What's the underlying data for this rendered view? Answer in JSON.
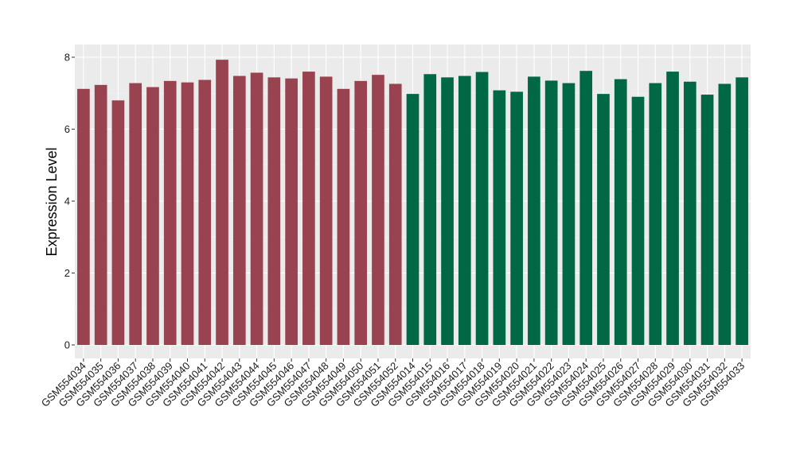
{
  "chart_data": {
    "type": "bar",
    "title": "",
    "xlabel": "",
    "ylabel": "Expression Level",
    "ylim": [
      -0.35,
      8.35
    ],
    "yticks": [
      0,
      2,
      4,
      6,
      8
    ],
    "grid": true,
    "panel_background": "#ebebeb",
    "categories": [
      "GSM554034",
      "GSM554035",
      "GSM554036",
      "GSM554037",
      "GSM554038",
      "GSM554039",
      "GSM554040",
      "GSM554041",
      "GSM554042",
      "GSM554043",
      "GSM554044",
      "GSM554045",
      "GSM554046",
      "GSM554047",
      "GSM554048",
      "GSM554049",
      "GSM554050",
      "GSM554051",
      "GSM554052",
      "GSM554014",
      "GSM554015",
      "GSM554016",
      "GSM554017",
      "GSM554018",
      "GSM554019",
      "GSM554020",
      "GSM554021",
      "GSM554022",
      "GSM554023",
      "GSM554024",
      "GSM554025",
      "GSM554026",
      "GSM554027",
      "GSM554028",
      "GSM554029",
      "GSM554030",
      "GSM554031",
      "GSM554032",
      "GSM554033"
    ],
    "values": [
      7.12,
      7.23,
      6.8,
      7.28,
      7.17,
      7.34,
      7.3,
      7.37,
      7.93,
      7.48,
      7.57,
      7.44,
      7.41,
      7.6,
      7.46,
      7.12,
      7.34,
      7.51,
      7.26,
      6.98,
      7.53,
      7.44,
      7.48,
      7.59,
      7.08,
      7.04,
      7.46,
      7.35,
      7.28,
      7.62,
      6.98,
      7.39,
      6.9,
      7.28,
      7.6,
      7.32,
      6.96,
      7.26,
      7.44
    ],
    "bar_colors": [
      "#994350",
      "#994350",
      "#994350",
      "#994350",
      "#994350",
      "#994350",
      "#994350",
      "#994350",
      "#994350",
      "#994350",
      "#994350",
      "#994350",
      "#994350",
      "#994350",
      "#994350",
      "#994350",
      "#994350",
      "#994350",
      "#994350",
      "#006845",
      "#006845",
      "#006845",
      "#006845",
      "#006845",
      "#006845",
      "#006845",
      "#006845",
      "#006845",
      "#006845",
      "#006845",
      "#006845",
      "#006845",
      "#006845",
      "#006845",
      "#006845",
      "#006845",
      "#006845",
      "#006845",
      "#006845"
    ]
  }
}
